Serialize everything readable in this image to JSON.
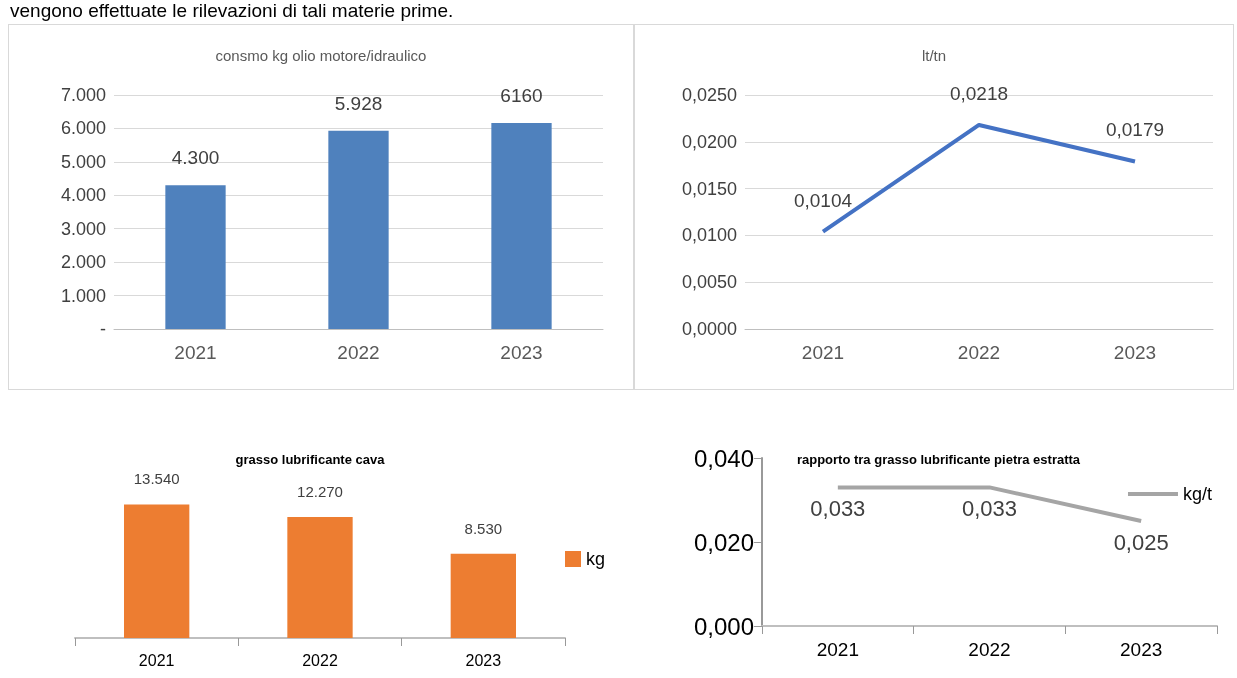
{
  "chart_data": [
    {
      "type": "bar",
      "title": "consmo kg olio motore/idraulico",
      "annotations": [
        "vengono effettuate le rilevazioni di tali materie prime."
      ],
      "categories": [
        "2021",
        "2022",
        "2023"
      ],
      "series": [
        {
          "color": "#4f81bd",
          "values": [
            4300,
            5928,
            6160
          ],
          "value_labels": [
            "4.300",
            "5.928",
            "6160"
          ]
        }
      ],
      "ylim": [
        0,
        7000
      ],
      "yticks": [
        {
          "value": 0,
          "label": "-"
        },
        {
          "value": 1000,
          "label": "1.000"
        },
        {
          "value": 2000,
          "label": "2.000"
        },
        {
          "value": 3000,
          "label": "3.000"
        },
        {
          "value": 4000,
          "label": "4.000"
        },
        {
          "value": 5000,
          "label": "5.000"
        },
        {
          "value": 6000,
          "label": "6.000"
        },
        {
          "value": 7000,
          "label": "7.000"
        }
      ],
      "grid": true,
      "legend": false
    },
    {
      "type": "line",
      "title": "lt/tn",
      "categories": [
        "2021",
        "2022",
        "2023"
      ],
      "series": [
        {
          "color": "#4472c4",
          "values": [
            0.0104,
            0.0218,
            0.0179
          ],
          "value_labels": [
            "0,0104",
            "0,0218",
            "0,0179"
          ]
        }
      ],
      "ylim": [
        0,
        0.025
      ],
      "yticks": [
        {
          "value": 0,
          "label": "0,0000"
        },
        {
          "value": 0.005,
          "label": "0,0050"
        },
        {
          "value": 0.01,
          "label": "0,0100"
        },
        {
          "value": 0.015,
          "label": "0,0150"
        },
        {
          "value": 0.02,
          "label": "0,0200"
        },
        {
          "value": 0.025,
          "label": "0,0250"
        }
      ],
      "grid": true,
      "legend": false,
      "marker": "none"
    },
    {
      "type": "bar",
      "title": "grasso lubrificante cava",
      "categories": [
        "2021",
        "2022",
        "2023"
      ],
      "series": [
        {
          "name": "kg",
          "color": "#ed7d31",
          "values": [
            13540,
            12270,
            8530
          ],
          "value_labels": [
            "13.540",
            "12.270",
            "8.530"
          ]
        }
      ],
      "tick_labels": "x",
      "grid": false,
      "legend": "right"
    },
    {
      "type": "line",
      "title": "rapporto tra grasso lubrificante pietra estratta",
      "categories": [
        "2021",
        "2022",
        "2023"
      ],
      "series": [
        {
          "name": "kg/t",
          "color": "#a5a5a5",
          "values": [
            0.033,
            0.033,
            0.025
          ],
          "value_labels": [
            "0,033",
            "0,033",
            "0,025"
          ]
        }
      ],
      "ylim": [
        0,
        0.04
      ],
      "yticks": [
        {
          "value": 0,
          "label": "0,000"
        },
        {
          "value": 0.02,
          "label": "0,020"
        },
        {
          "value": 0.04,
          "label": "0,040"
        }
      ],
      "grid": false,
      "legend": "top right",
      "marker": "none"
    }
  ]
}
